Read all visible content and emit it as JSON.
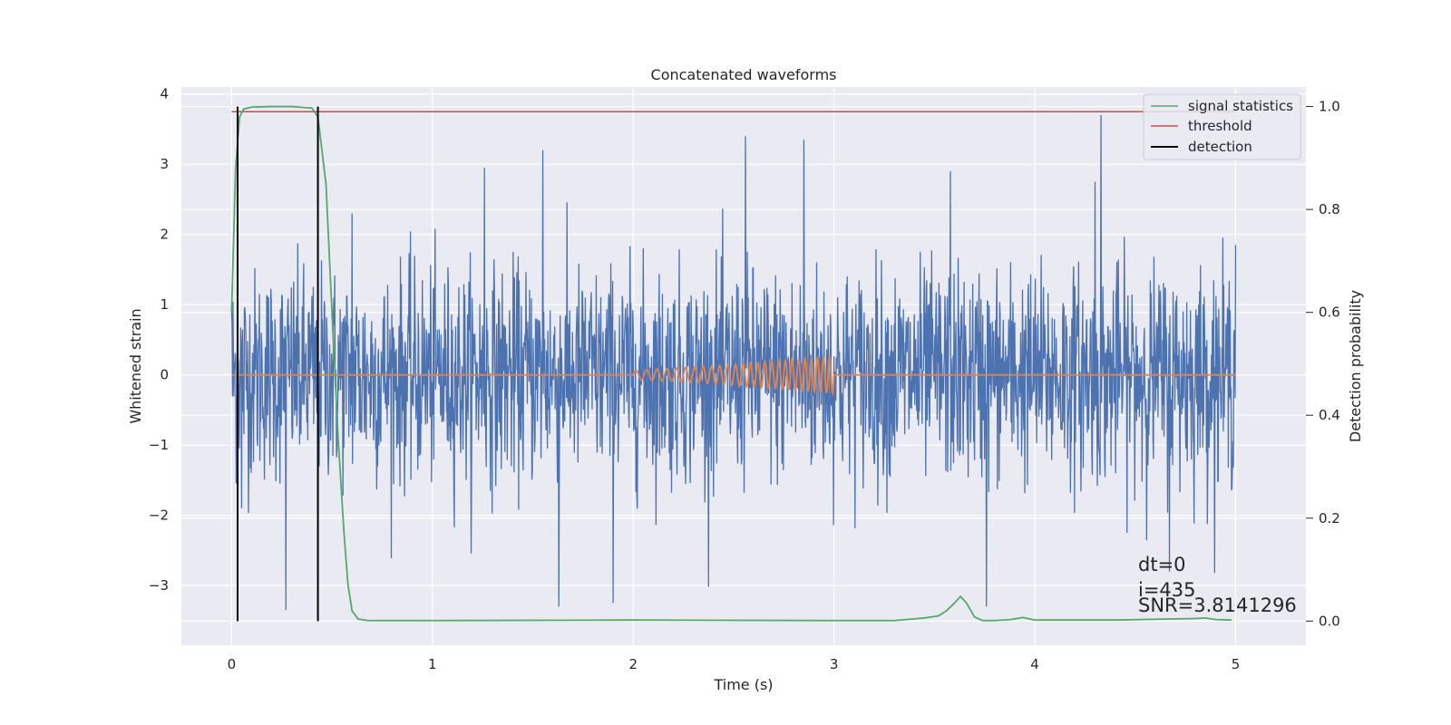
{
  "chart_data": {
    "type": "line",
    "title": "Concatenated waveforms",
    "xlabel": "Time (s)",
    "ylabel": "Whitened strain",
    "ylabel_right": "Detection probability",
    "xlim": [
      -0.25,
      5.35
    ],
    "ylim": [
      -3.85,
      4.1
    ],
    "ylim_right": [
      -0.047,
      1.038
    ],
    "x_ticks": [
      0,
      1,
      2,
      3,
      4,
      5
    ],
    "y_ticks": [
      -3,
      -2,
      -1,
      0,
      1,
      2,
      3,
      4
    ],
    "y_ticks_right": [
      0.0,
      0.2,
      0.4,
      0.6,
      0.8,
      1.0
    ],
    "grid": true,
    "legend_position": "top-right",
    "legend": [
      "signal statistics",
      "threshold",
      "detection"
    ],
    "colors": {
      "background": "#eaeaf2",
      "strain": "#4c72b0",
      "template": "#dd8452",
      "statistics": "#55a868",
      "threshold": "#c44e52",
      "detection": "#000000"
    },
    "series": [
      {
        "axis": "left",
        "description_color": "#4c72b0",
        "x_range": [
          0,
          5
        ],
        "noise_peak_max": 3.7,
        "noise_peak_min": -3.5,
        "samples": [
          [
            0.0,
            0.9
          ],
          [
            0.03,
            2.75
          ],
          [
            0.05,
            -1.9
          ],
          [
            0.27,
            -3.35
          ],
          [
            0.6,
            2.3
          ],
          [
            1.26,
            2.95
          ],
          [
            1.55,
            3.2
          ],
          [
            1.63,
            -3.3
          ],
          [
            1.9,
            -3.25
          ],
          [
            2.56,
            3.4
          ],
          [
            2.85,
            3.35
          ],
          [
            3.58,
            2.9
          ],
          [
            3.76,
            -3.3
          ],
          [
            4.3,
            2.75
          ],
          [
            4.33,
            3.7
          ],
          [
            4.67,
            -2.8
          ],
          [
            5.0,
            1.85
          ]
        ]
      },
      {
        "axis": "left",
        "description_color": "#dd8452",
        "chirp_start": 2.0,
        "chirp_end": 3.0,
        "chirp_amp_start": 0.07,
        "chirp_amp_end": 0.27,
        "baseline": 0
      },
      {
        "name": "signal statistics",
        "axis": "right",
        "x": [
          0.0,
          0.02,
          0.04,
          0.06,
          0.1,
          0.2,
          0.3,
          0.4,
          0.43,
          0.47,
          0.5,
          0.53,
          0.56,
          0.58,
          0.6,
          0.63,
          0.68,
          1.0,
          2.0,
          3.0,
          3.3,
          3.45,
          3.52,
          3.56,
          3.6,
          3.63,
          3.66,
          3.7,
          3.74,
          3.8,
          3.88,
          3.94,
          4.0,
          4.4,
          4.8,
          4.85,
          4.9,
          4.98
        ],
        "y": [
          0.6,
          0.88,
          0.98,
          0.995,
          0.999,
          1.0,
          1.0,
          0.997,
          0.98,
          0.85,
          0.6,
          0.36,
          0.17,
          0.07,
          0.02,
          0.004,
          0.001,
          0.001,
          0.002,
          0.001,
          0.001,
          0.006,
          0.01,
          0.02,
          0.035,
          0.048,
          0.035,
          0.008,
          0.001,
          0.001,
          0.003,
          0.007,
          0.002,
          0.002,
          0.005,
          0.006,
          0.003,
          0.002
        ]
      },
      {
        "name": "threshold",
        "axis": "right",
        "x": [
          0,
          5
        ],
        "y": [
          0.99,
          0.99
        ]
      },
      {
        "name": "detection",
        "axis": "right",
        "vlines": [
          0.03,
          0.43
        ],
        "y": [
          0,
          1
        ]
      }
    ],
    "annotations": [
      "dt=0",
      "i=435",
      "SNR=3.8141296"
    ]
  }
}
